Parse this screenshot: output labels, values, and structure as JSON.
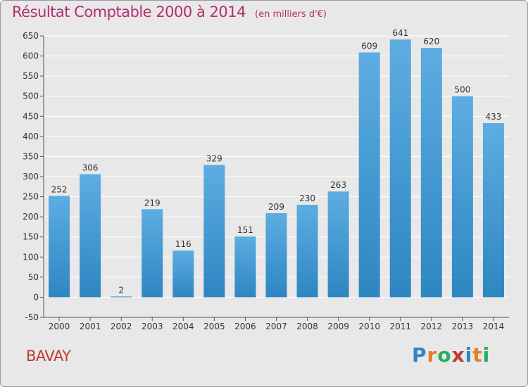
{
  "chart_data": {
    "type": "bar",
    "title": "Résultat Comptable 2000 à 2014",
    "unit_note": "(en milliers d'€)",
    "categories": [
      "2000",
      "2001",
      "2002",
      "2003",
      "2004",
      "2005",
      "2006",
      "2007",
      "2008",
      "2009",
      "2010",
      "2011",
      "2012",
      "2013",
      "2014"
    ],
    "values": [
      252,
      306,
      2,
      219,
      116,
      329,
      151,
      209,
      230,
      263,
      609,
      641,
      620,
      500,
      433
    ],
    "ylim": [
      -50,
      650
    ],
    "yticks": [
      -50,
      0,
      50,
      100,
      150,
      200,
      250,
      300,
      350,
      400,
      450,
      500,
      550,
      600,
      650
    ],
    "grid": true,
    "bar_color_top": "#5dade2",
    "bar_color_bottom": "#2e86c1",
    "xlabel": "",
    "ylabel": ""
  },
  "footer": {
    "place": "BAVAY",
    "logo_letters": [
      {
        "char": "P",
        "color": "#2e86c1"
      },
      {
        "char": "r",
        "color": "#e67e22"
      },
      {
        "char": "o",
        "color": "#27ae60"
      },
      {
        "char": "x",
        "color": "#c0392b"
      },
      {
        "char": "i",
        "color": "#2e86c1"
      },
      {
        "char": "t",
        "color": "#e67e22"
      },
      {
        "char": "i",
        "color": "#27ae60"
      }
    ]
  }
}
